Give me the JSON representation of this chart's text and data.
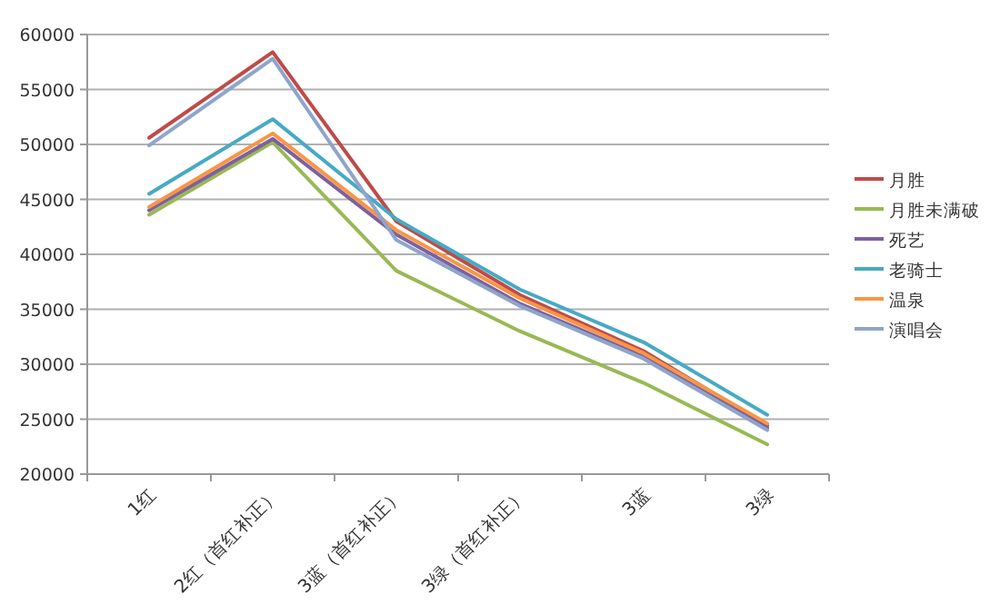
{
  "chart_data": {
    "type": "line",
    "categories": [
      "1红",
      "2红（首红补正）",
      "3蓝（首红补正）",
      "3绿（首红补正）",
      "3蓝",
      "3绿"
    ],
    "ylim": [
      20000,
      60000
    ],
    "yticks": [
      20000,
      25000,
      30000,
      35000,
      40000,
      45000,
      50000,
      55000,
      60000
    ],
    "grid": "y",
    "legend": "right",
    "marker": "none",
    "line_style": "solid",
    "series": [
      {
        "name": "月胜",
        "color": "#be4b48",
        "values": [
          50600,
          58400,
          43000,
          36300,
          31200,
          24400
        ]
      },
      {
        "name": "月胜未满破",
        "color": "#98b954",
        "values": [
          43600,
          50200,
          38500,
          33000,
          28300,
          22700
        ]
      },
      {
        "name": "死艺",
        "color": "#7d60a0",
        "values": [
          44000,
          50500,
          41800,
          35500,
          30700,
          24200
        ]
      },
      {
        "name": "老骑士",
        "color": "#46aac5",
        "values": [
          45500,
          52300,
          43200,
          36800,
          32000,
          25400
        ]
      },
      {
        "name": "温泉",
        "color": "#f79646",
        "values": [
          44300,
          51000,
          42200,
          36000,
          31000,
          24600
        ]
      },
      {
        "name": "演唱会",
        "color": "#8ea5cb",
        "values": [
          49900,
          57800,
          41300,
          35300,
          30500,
          24000
        ]
      }
    ]
  }
}
